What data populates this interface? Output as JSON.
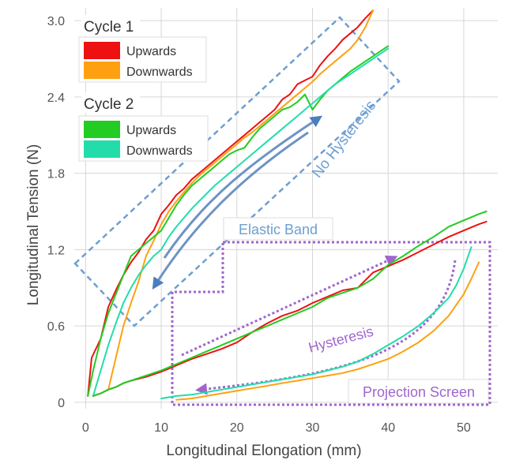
{
  "chart_data": {
    "type": "line",
    "title": "",
    "xlabel": "Longitudinal Elongation (mm)",
    "ylabel": "Longitudinal Tension (N)",
    "xlim": [
      -1.5,
      54.5
    ],
    "ylim": [
      -0.05,
      3.1
    ],
    "xticks": [
      0,
      10,
      20,
      30,
      40,
      50
    ],
    "yticks": [
      0,
      0.6,
      1.2,
      1.8,
      2.4,
      3.0
    ],
    "ytick_labels": [
      "0",
      "0.6",
      "1.2",
      "1.8",
      "2.4",
      "3.0"
    ],
    "grid": true,
    "legend": {
      "groups": [
        {
          "title": "Cycle 1",
          "entries": [
            {
              "label": "Upwards",
              "color": "#ee1111"
            },
            {
              "label": "Downwards",
              "color": "#ffa010"
            }
          ]
        },
        {
          "title": "Cycle 2",
          "entries": [
            {
              "label": "Upwards",
              "color": "#22cc22"
            },
            {
              "label": "Downwards",
              "color": "#22ddaa"
            }
          ]
        }
      ]
    },
    "annotations": {
      "no_hysteresis": "No Hysteresis",
      "elastic_band": "Elastic Band",
      "hysteresis": "Hysteresis",
      "projection_screen": "Projection Screen"
    },
    "series": [
      {
        "group": "elastic-band",
        "color": "#ee1111",
        "x": [
          0.3,
          0.8,
          2,
          3,
          4,
          5,
          6,
          7,
          8,
          9,
          10,
          11,
          12,
          13,
          14,
          15,
          16,
          17,
          18,
          19,
          20,
          21,
          22,
          23,
          24,
          25,
          26,
          27,
          28,
          29,
          30,
          31,
          32,
          33,
          34,
          35,
          36,
          37,
          38
        ],
        "y": [
          0.05,
          0.35,
          0.5,
          0.75,
          0.88,
          1.0,
          1.1,
          1.18,
          1.28,
          1.35,
          1.48,
          1.55,
          1.63,
          1.68,
          1.75,
          1.8,
          1.85,
          1.9,
          1.95,
          2.0,
          2.05,
          2.1,
          2.15,
          2.2,
          2.25,
          2.3,
          2.38,
          2.42,
          2.5,
          2.53,
          2.56,
          2.65,
          2.72,
          2.78,
          2.85,
          2.9,
          2.95,
          3.02,
          3.08
        ]
      },
      {
        "group": "elastic-band",
        "color": "#ffa010",
        "x": [
          3,
          4,
          5,
          6,
          7,
          8,
          9,
          10,
          11,
          12,
          13,
          14,
          15,
          16,
          17,
          18,
          19,
          20,
          21,
          22,
          23,
          24,
          25,
          26,
          27,
          28,
          29,
          30,
          31,
          32,
          33,
          34,
          35,
          36,
          37,
          38
        ],
        "y": [
          0.1,
          0.35,
          0.6,
          0.78,
          0.95,
          1.15,
          1.27,
          1.4,
          1.5,
          1.58,
          1.65,
          1.72,
          1.78,
          1.83,
          1.88,
          1.93,
          1.98,
          2.03,
          2.08,
          2.12,
          2.17,
          2.22,
          2.27,
          2.32,
          2.37,
          2.42,
          2.47,
          2.52,
          2.58,
          2.63,
          2.68,
          2.73,
          2.78,
          2.85,
          2.95,
          3.08
        ]
      },
      {
        "group": "elastic-band",
        "color": "#22cc22",
        "x": [
          0.3,
          1,
          2,
          3,
          4,
          5,
          6,
          7,
          8,
          9,
          10,
          11,
          12,
          13,
          14,
          15,
          16,
          17,
          18,
          19,
          20,
          21,
          22,
          23,
          24,
          25,
          26,
          27,
          28,
          29,
          30,
          31,
          32,
          33,
          34,
          35,
          36,
          37,
          38,
          39,
          40
        ],
        "y": [
          0.05,
          0.25,
          0.5,
          0.7,
          0.85,
          1.0,
          1.15,
          1.2,
          1.25,
          1.3,
          1.35,
          1.45,
          1.55,
          1.63,
          1.7,
          1.75,
          1.8,
          1.85,
          1.9,
          1.95,
          1.98,
          2.0,
          2.08,
          2.15,
          2.2,
          2.25,
          2.3,
          2.32,
          2.36,
          2.42,
          2.3,
          2.38,
          2.45,
          2.5,
          2.55,
          2.6,
          2.64,
          2.68,
          2.72,
          2.76,
          2.8
        ]
      },
      {
        "group": "elastic-band",
        "color": "#22ddaa",
        "x": [
          1,
          2,
          3,
          4,
          5,
          6,
          7,
          8,
          9,
          10,
          11,
          12,
          13,
          14,
          15,
          16,
          17,
          18,
          19,
          20,
          21,
          22,
          23,
          24,
          25,
          26,
          27,
          28,
          29,
          30,
          31,
          32,
          33,
          34,
          35,
          36,
          37,
          38,
          39,
          40
        ],
        "y": [
          0.05,
          0.25,
          0.45,
          0.62,
          0.78,
          0.9,
          1.0,
          1.08,
          1.15,
          1.2,
          1.3,
          1.38,
          1.45,
          1.52,
          1.58,
          1.64,
          1.7,
          1.75,
          1.8,
          1.85,
          1.9,
          1.95,
          2.0,
          2.05,
          2.1,
          2.15,
          2.2,
          2.25,
          2.3,
          2.35,
          2.4,
          2.45,
          2.5,
          2.54,
          2.58,
          2.62,
          2.66,
          2.7,
          2.74,
          2.78
        ]
      },
      {
        "group": "projection-screen",
        "color": "#ee1111",
        "x": [
          1,
          2,
          3,
          4,
          5,
          6,
          8,
          10,
          12,
          14,
          16,
          18,
          20,
          22,
          24,
          26,
          28,
          30,
          32,
          34,
          36,
          38,
          40,
          42,
          44,
          46,
          48,
          50,
          52,
          53
        ],
        "y": [
          0.05,
          0.07,
          0.1,
          0.12,
          0.15,
          0.17,
          0.2,
          0.24,
          0.29,
          0.34,
          0.38,
          0.42,
          0.47,
          0.55,
          0.62,
          0.68,
          0.72,
          0.78,
          0.83,
          0.88,
          0.9,
          1.02,
          1.07,
          1.12,
          1.18,
          1.24,
          1.3,
          1.35,
          1.4,
          1.42
        ]
      },
      {
        "group": "projection-screen",
        "color": "#22cc22",
        "x": [
          1,
          2,
          3,
          4,
          5,
          6,
          8,
          10,
          12,
          14,
          16,
          18,
          20,
          22,
          24,
          26,
          28,
          30,
          32,
          34,
          36,
          38,
          40,
          42,
          44,
          46,
          48,
          50,
          52,
          53
        ],
        "y": [
          0.05,
          0.07,
          0.1,
          0.12,
          0.15,
          0.17,
          0.21,
          0.25,
          0.3,
          0.35,
          0.4,
          0.45,
          0.5,
          0.55,
          0.6,
          0.65,
          0.7,
          0.75,
          0.82,
          0.86,
          0.9,
          0.97,
          1.08,
          1.15,
          1.23,
          1.3,
          1.38,
          1.43,
          1.48,
          1.5
        ]
      },
      {
        "group": "projection-screen",
        "color": "#22ddaa",
        "x": [
          10,
          12,
          14,
          16,
          18,
          20,
          22,
          24,
          26,
          28,
          30,
          32,
          34,
          36,
          38,
          40,
          42,
          44,
          46,
          48,
          49,
          50,
          51
        ],
        "y": [
          0.03,
          0.05,
          0.06,
          0.08,
          0.1,
          0.12,
          0.14,
          0.16,
          0.18,
          0.2,
          0.22,
          0.25,
          0.28,
          0.32,
          0.38,
          0.45,
          0.52,
          0.6,
          0.7,
          0.82,
          0.92,
          1.05,
          1.22
        ]
      },
      {
        "group": "projection-screen",
        "color": "#ffa010",
        "x": [
          12,
          14,
          16,
          18,
          20,
          22,
          24,
          26,
          28,
          30,
          32,
          34,
          36,
          38,
          40,
          42,
          44,
          46,
          48,
          50,
          51,
          52
        ],
        "y": [
          0.02,
          0.03,
          0.05,
          0.07,
          0.09,
          0.11,
          0.13,
          0.15,
          0.17,
          0.19,
          0.21,
          0.23,
          0.26,
          0.3,
          0.34,
          0.4,
          0.47,
          0.56,
          0.68,
          0.85,
          0.97,
          1.1
        ]
      }
    ]
  }
}
